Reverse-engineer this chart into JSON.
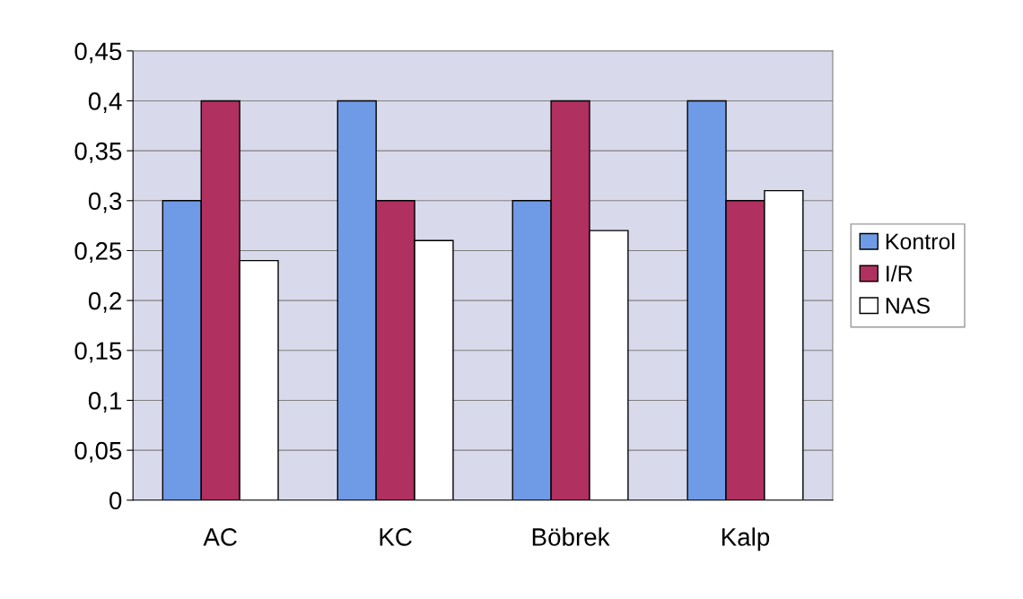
{
  "chart_data": {
    "type": "bar",
    "categories": [
      "AC",
      "KC",
      "Böbrek",
      "Kalp"
    ],
    "series": [
      {
        "name": "Kontrol",
        "color": "#6f9be6",
        "values": [
          0.3,
          0.4,
          0.3,
          0.4
        ]
      },
      {
        "name": "I/R",
        "color": "#b0305f",
        "values": [
          0.4,
          0.3,
          0.4,
          0.3
        ]
      },
      {
        "name": "NAS",
        "color": "#ffffff",
        "values": [
          0.24,
          0.26,
          0.27,
          0.31
        ]
      }
    ],
    "ylim": [
      0,
      0.45
    ],
    "yticks": [
      0,
      {
        "value": 0.05,
        "label": "0,05"
      },
      {
        "value": 0.1,
        "label": "0,1"
      },
      {
        "value": 0.15,
        "label": "0,15"
      },
      {
        "value": 0.2,
        "label": "0,2"
      },
      {
        "value": 0.25,
        "label": "0,25"
      },
      {
        "value": 0.3,
        "label": "0,3"
      },
      {
        "value": 0.35,
        "label": "0,35"
      },
      {
        "value": 0.4,
        "label": "0,4"
      },
      {
        "value": 0.45,
        "label": "0,45"
      }
    ],
    "grid": "y",
    "legend": "right"
  }
}
